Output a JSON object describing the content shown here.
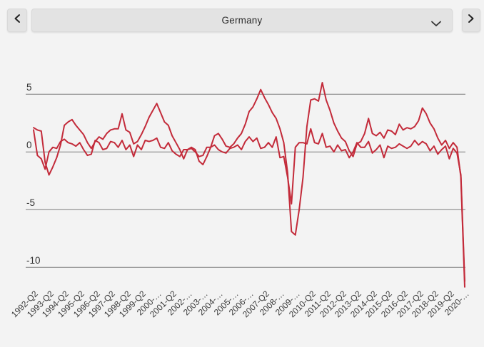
{
  "header": {
    "country_selector": {
      "value": "Germany"
    },
    "icons": {
      "prev": "chevron-left",
      "next": "chevron-right",
      "dropdown": "chevron-down"
    }
  },
  "chart_data": {
    "type": "line",
    "title": "",
    "legend": "none",
    "grid": true,
    "line_color": "#c32b3a",
    "grid_color": "#7d7d7d",
    "ylim": [
      -12.2,
      6.6
    ],
    "y_ticks": [
      {
        "label": "5",
        "value": 5
      },
      {
        "label": "0",
        "value": 0
      },
      {
        "label": "-5",
        "value": -5
      },
      {
        "label": "-10",
        "value": -10
      }
    ],
    "x_ticks_every_n_points": 4,
    "x_tick_labels": [
      "1992-Q2",
      "1993-Q2",
      "1994-Q2",
      "1995-Q2",
      "1996-Q2",
      "1997-Q2",
      "1998-Q2",
      "1999-Q2",
      "2000-…",
      "2001-Q2",
      "2002-…",
      "2003-…",
      "2004-…",
      "2005-…",
      "2006-…",
      "2007-Q2",
      "2008-…",
      "2009-…",
      "2010-Q2",
      "2011-Q2",
      "2012-Q2",
      "2013-Q2",
      "2014-Q2",
      "2015-Q2",
      "2016-Q2",
      "2017-Q2",
      "2018-Q2",
      "2019-Q2",
      "2020-…"
    ],
    "series": [
      {
        "name": "line-1",
        "values": [
          2.1,
          1.9,
          1.8,
          -0.9,
          -2.0,
          -1.3,
          -0.5,
          0.6,
          2.3,
          2.6,
          2.8,
          2.3,
          1.9,
          1.5,
          0.8,
          0.3,
          0.9,
          1.3,
          1.1,
          1.6,
          1.9,
          2.0,
          2.0,
          3.3,
          1.9,
          1.7,
          0.7,
          0.9,
          1.5,
          2.2,
          3.0,
          3.6,
          4.2,
          3.4,
          2.6,
          2.3,
          1.4,
          0.8,
          0.2,
          -0.6,
          0.2,
          0.4,
          0.2,
          -0.8,
          -1.1,
          -0.4,
          0.4,
          1.4,
          1.6,
          1.1,
          0.5,
          0.4,
          0.7,
          1.2,
          1.6,
          2.4,
          3.5,
          3.9,
          4.6,
          5.4,
          4.7,
          4.1,
          3.4,
          2.9,
          2.0,
          0.8,
          -1.8,
          -6.9,
          -7.2,
          -5.0,
          -2.2,
          2.2,
          4.5,
          4.6,
          4.4,
          6.0,
          4.5,
          3.6,
          2.5,
          1.8,
          1.2,
          0.9,
          0.1,
          -0.4,
          0.7,
          0.9,
          1.6,
          2.9,
          1.6,
          1.4,
          1.7,
          1.2,
          1.9,
          1.8,
          1.5,
          2.4,
          1.9,
          2.1,
          2.0,
          2.2,
          2.7,
          3.8,
          3.3,
          2.5,
          2.0,
          1.2,
          0.6,
          1.0,
          0.3,
          0.8,
          0.4,
          -2.2,
          -11.7
        ]
      },
      {
        "name": "line-2",
        "values": [
          1.9,
          -0.3,
          -0.6,
          -1.5,
          0.0,
          0.4,
          0.3,
          0.9,
          1.1,
          0.8,
          0.7,
          0.5,
          0.8,
          0.2,
          -0.3,
          -0.2,
          1.0,
          0.8,
          0.2,
          0.3,
          0.9,
          0.8,
          0.4,
          1.0,
          0.2,
          0.6,
          -0.4,
          0.6,
          0.2,
          1.0,
          0.9,
          1.0,
          1.2,
          0.4,
          0.3,
          0.8,
          0.1,
          -0.2,
          -0.4,
          0.2,
          0.2,
          0.3,
          0.0,
          -0.4,
          -0.3,
          0.4,
          0.4,
          0.6,
          0.2,
          0.0,
          -0.1,
          0.3,
          0.4,
          0.6,
          0.2,
          0.9,
          1.3,
          0.9,
          1.2,
          0.3,
          0.4,
          0.8,
          0.4,
          1.3,
          -0.5,
          -0.4,
          -2.2,
          -4.5,
          0.4,
          0.8,
          0.8,
          0.7,
          2.0,
          0.8,
          0.7,
          1.6,
          0.4,
          0.5,
          0.0,
          0.6,
          0.1,
          0.2,
          -0.5,
          0.0,
          0.8,
          0.4,
          0.4,
          0.9,
          -0.1,
          0.2,
          0.6,
          -0.5,
          0.5,
          0.3,
          0.4,
          0.7,
          0.5,
          0.3,
          0.5,
          1.0,
          0.6,
          0.9,
          0.7,
          0.1,
          0.5,
          -0.2,
          0.2,
          0.5,
          -0.6,
          0.3,
          -0.1,
          -2.0,
          -11.2
        ]
      }
    ]
  }
}
